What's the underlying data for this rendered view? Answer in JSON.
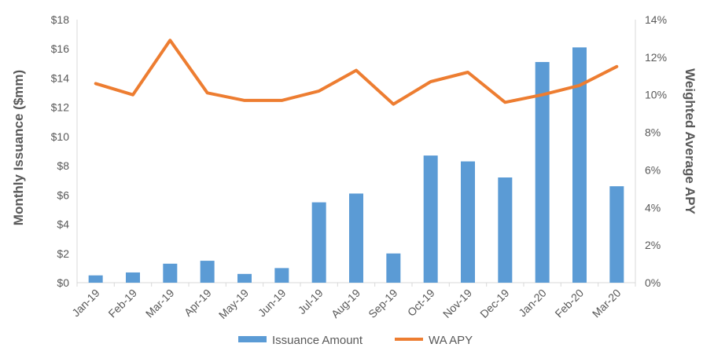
{
  "chart_data": {
    "type": "bar",
    "title": "",
    "categories": [
      "Jan-19",
      "Feb-19",
      "Mar-19",
      "Apr-19",
      "May-19",
      "Jun-19",
      "Jul-19",
      "Aug-19",
      "Sep-19",
      "Oct-19",
      "Nov-19",
      "Dec-19",
      "Jan-20",
      "Feb-20",
      "Mar-20"
    ],
    "series": [
      {
        "name": "Issuance Amount",
        "type": "bar",
        "axis": "left",
        "color": "#5B9BD5",
        "values": [
          0.5,
          0.7,
          1.3,
          1.5,
          0.6,
          1.0,
          5.5,
          6.1,
          2.0,
          8.7,
          8.3,
          7.2,
          15.1,
          16.1,
          6.6
        ]
      },
      {
        "name": "WA APY",
        "type": "line",
        "axis": "right",
        "color": "#ED7D31",
        "values": [
          10.6,
          10.0,
          12.9,
          10.1,
          9.7,
          9.7,
          10.2,
          11.3,
          9.5,
          10.7,
          11.2,
          9.6,
          10.0,
          10.5,
          11.5
        ]
      }
    ],
    "ylabel": "Monthly Issuance ($mm)",
    "y2label": "Weighted Average APY",
    "ylim": [
      0,
      18
    ],
    "y2lim": [
      0,
      14
    ],
    "yticks": [
      "$0",
      "$2",
      "$4",
      "$6",
      "$8",
      "$10",
      "$12",
      "$14",
      "$16",
      "$18"
    ],
    "y2ticks": [
      "0%",
      "2%",
      "4%",
      "6%",
      "8%",
      "10%",
      "12%",
      "14%"
    ],
    "grid": false,
    "legend_position": "bottom"
  }
}
